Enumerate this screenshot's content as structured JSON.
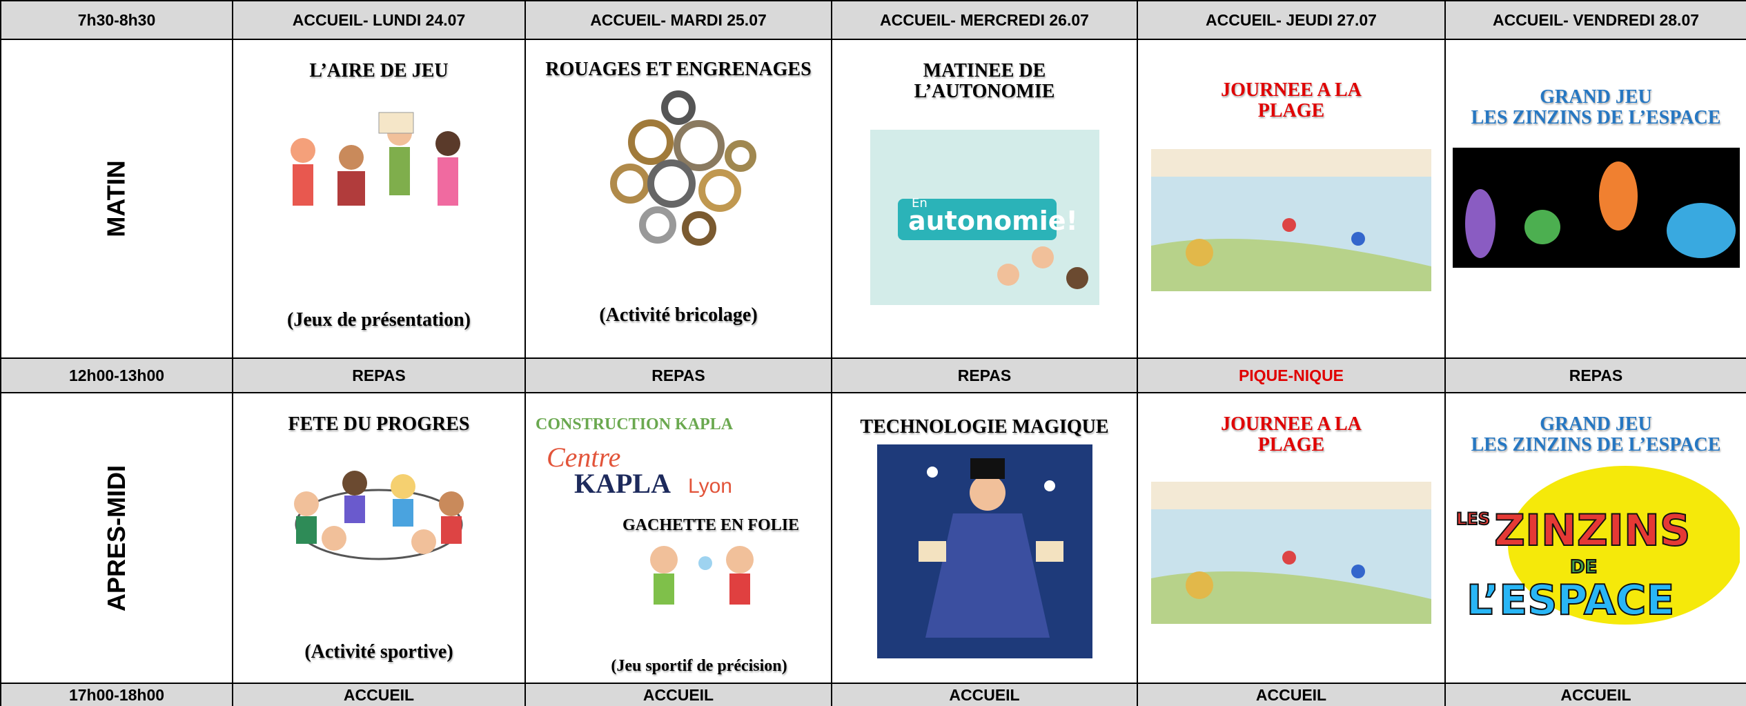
{
  "header": [
    "7h30-8h30",
    "ACCUEIL- LUNDI 24.07",
    "ACCUEIL- MARDI 25.07",
    "ACCUEIL- MERCREDI 26.07",
    "ACCUEIL- JEUDI 27.07",
    "ACCUEIL- VENDREDI 28.07"
  ],
  "matin": {
    "label": "MATIN",
    "cells": [
      {
        "title": "L’AIRE DE JEU",
        "caption": "(Jeux de présentation)"
      },
      {
        "title": "ROUAGES ET ENGRENAGES",
        "caption": "(Activité bricolage)"
      },
      {
        "title": "MATINEE DE L’AUTONOMIE",
        "image_text": [
          "En",
          "autonomie!"
        ]
      },
      {
        "title": "JOURNEE A LA PLAGE"
      },
      {
        "title": [
          "GRAND JEU",
          "LES ZINZINS DE L’ESPACE"
        ]
      }
    ]
  },
  "midi": [
    "12h00-13h00",
    "REPAS",
    "REPAS",
    "REPAS",
    "PIQUE-NIQUE",
    "REPAS"
  ],
  "apres_midi": {
    "label": "APRES-MIDI",
    "cells": [
      {
        "title": "FETE DU PROGRES",
        "caption": "(Activité sportive)"
      },
      {
        "title": "CONSTRUCTION KAPLA",
        "image_text": [
          "Centre",
          "KAPLA",
          "Lyon"
        ],
        "subtitle": "GACHETTE EN FOLIE",
        "caption": "(Jeu sportif de précision)"
      },
      {
        "title": "TECHNOLOGIE MAGIQUE"
      },
      {
        "title": "JOURNEE A LA PLAGE"
      },
      {
        "title": [
          "GRAND JEU",
          "LES ZINZINS DE L’ESPACE"
        ],
        "image_text": [
          "LES",
          "ZINZINS",
          "DE",
          "L’ESPACE"
        ]
      }
    ]
  },
  "soir": [
    "17h00-18h00",
    "ACCUEIL",
    "ACCUEIL",
    "ACCUEIL",
    "ACCUEIL",
    "ACCUEIL"
  ]
}
